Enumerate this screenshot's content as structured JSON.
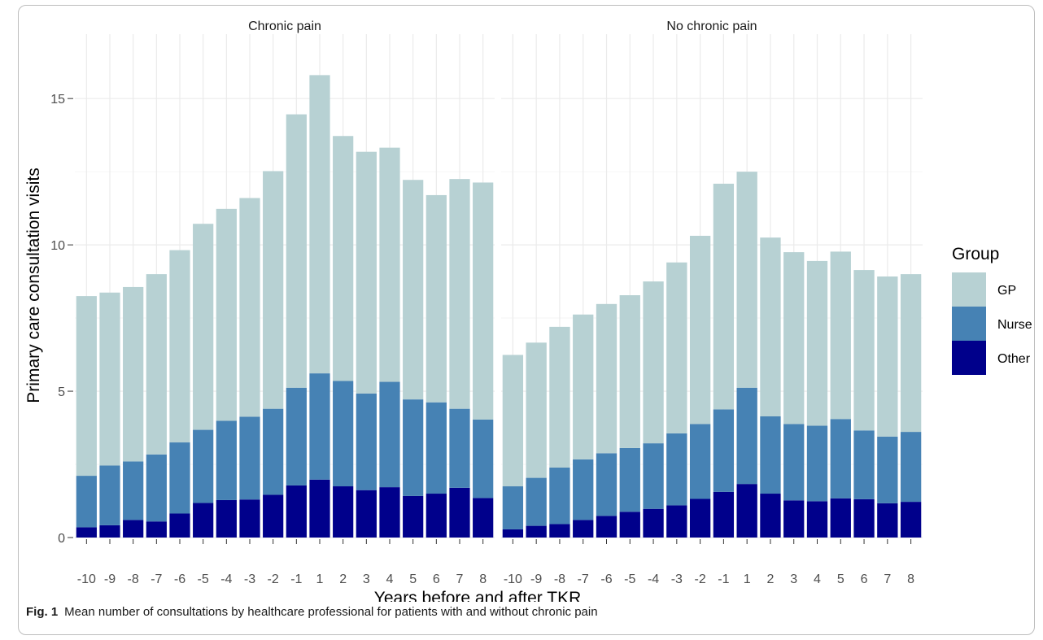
{
  "chart_data": {
    "type": "bar",
    "stacked": true,
    "ylabel": "Primary care consultation visits",
    "xlabel": "Years before and after TKR",
    "ylim": [
      0,
      17.2
    ],
    "yticks": [
      0,
      5,
      10,
      15
    ],
    "grid": true,
    "legend_title": "Group",
    "legend_position": "right",
    "categories": [
      "-10",
      "-9",
      "-8",
      "-7",
      "-6",
      "-5",
      "-4",
      "-3",
      "-2",
      "-1",
      "1",
      "2",
      "3",
      "4",
      "5",
      "6",
      "7",
      "8"
    ],
    "colors": {
      "GP": "#b7d1d3",
      "Nurse": "#4682b4",
      "Other": "#00008b"
    },
    "legend": [
      {
        "name": "GP",
        "color": "#b7d1d3"
      },
      {
        "name": "Nurse",
        "color": "#4682b4"
      },
      {
        "name": "Other",
        "color": "#00008b"
      }
    ],
    "panels": [
      {
        "title": "Chronic pain",
        "series": [
          {
            "name": "Other",
            "values": [
              0.35,
              0.42,
              0.6,
              0.55,
              0.82,
              1.18,
              1.28,
              1.3,
              1.46,
              1.78,
              1.98,
              1.75,
              1.62,
              1.72,
              1.42,
              1.5,
              1.7,
              1.35
            ]
          },
          {
            "name": "Nurse",
            "values": [
              1.76,
              2.04,
              2.0,
              2.29,
              2.43,
              2.5,
              2.71,
              2.83,
              2.94,
              3.34,
              3.63,
              3.6,
              3.3,
              3.6,
              3.3,
              3.12,
              2.7,
              2.68
            ]
          },
          {
            "name": "GP",
            "values": [
              6.14,
              5.91,
              5.96,
              6.16,
              6.57,
              7.04,
              7.24,
              7.47,
              8.12,
              9.34,
              10.19,
              8.37,
              8.26,
              8.0,
              7.5,
              7.08,
              7.85,
              8.1
            ]
          }
        ]
      },
      {
        "title": "No chronic pain",
        "series": [
          {
            "name": "Other",
            "values": [
              0.28,
              0.4,
              0.46,
              0.6,
              0.74,
              0.88,
              0.98,
              1.1,
              1.32,
              1.56,
              1.83,
              1.5,
              1.27,
              1.24,
              1.34,
              1.31,
              1.17,
              1.22
            ]
          },
          {
            "name": "Nurse",
            "values": [
              1.47,
              1.64,
              1.93,
              2.07,
              2.14,
              2.18,
              2.24,
              2.46,
              2.56,
              2.82,
              3.29,
              2.64,
              2.61,
              2.58,
              2.71,
              2.35,
              2.28,
              2.39
            ]
          },
          {
            "name": "GP",
            "values": [
              4.49,
              4.62,
              4.81,
              4.95,
              5.1,
              5.22,
              5.53,
              5.84,
              6.43,
              7.71,
              7.38,
              6.11,
              5.87,
              5.63,
              5.72,
              5.48,
              5.47,
              5.39
            ]
          }
        ]
      }
    ]
  },
  "caption": {
    "label": "Fig. 1",
    "text": "Mean number of consultations by healthcare professional for patients with and without chronic pain"
  }
}
